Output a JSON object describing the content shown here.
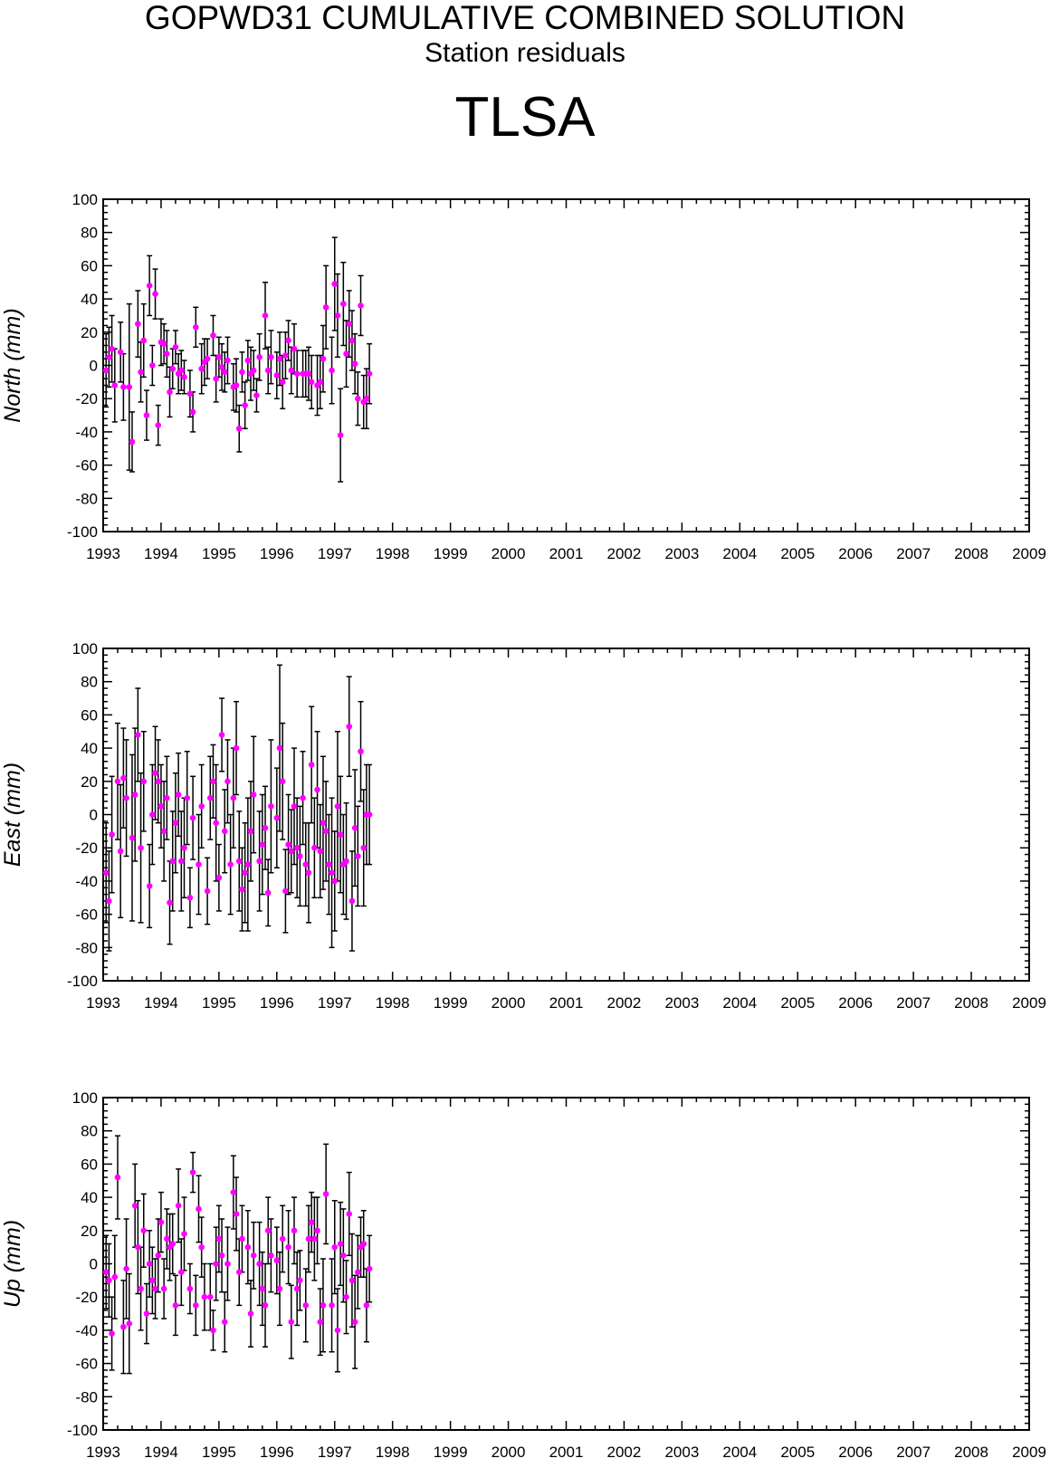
{
  "header": {
    "title": "GOPWD31 CUMULATIVE COMBINED SOLUTION",
    "subtitle": "Station residuals",
    "station": "TLSA"
  },
  "colors": {
    "marker": "#ff00ff",
    "errorbar": "#000000",
    "frame": "#000000"
  },
  "chart_data": [
    {
      "type": "scatter",
      "ylabel": "North (mm)",
      "xlim": [
        1993,
        2009
      ],
      "ylim": [
        -100,
        100
      ],
      "x_ticks": [
        "1993",
        "1994",
        "1995",
        "1996",
        "1997",
        "1998",
        "1999",
        "2000",
        "2001",
        "2002",
        "2003",
        "2004",
        "2005",
        "2006",
        "2007",
        "2008",
        "2009"
      ],
      "y_ticks": [
        "100",
        "80",
        "60",
        "40",
        "20",
        "0",
        "-20",
        "-40",
        "-60",
        "-80",
        "-100"
      ],
      "error_bars": true,
      "note_values": "approximate, read from plot",
      "x": [
        1993.05,
        1993.1,
        1993.15,
        1993.2,
        1993.3,
        1993.35,
        1993.45,
        1993.5,
        1993.6,
        1993.65,
        1993.7,
        1993.75,
        1993.8,
        1993.85,
        1993.9,
        1993.95,
        1994.0,
        1994.05,
        1994.1,
        1994.15,
        1994.2,
        1994.25,
        1994.3,
        1994.35,
        1994.4,
        1994.5,
        1994.55,
        1994.6,
        1994.7,
        1994.75,
        1994.8,
        1994.9,
        1994.95,
        1995.0,
        1995.05,
        1995.1,
        1995.15,
        1995.25,
        1995.3,
        1995.35,
        1995.4,
        1995.45,
        1995.5,
        1995.55,
        1995.6,
        1995.65,
        1995.7,
        1995.8,
        1995.85,
        1995.9,
        1996.0,
        1996.05,
        1996.1,
        1996.15,
        1996.2,
        1996.25,
        1996.3,
        1996.35,
        1996.45,
        1996.5,
        1996.55,
        1996.6,
        1996.7,
        1996.75,
        1996.8,
        1996.85,
        1996.95,
        1997.0,
        1997.05,
        1997.1,
        1997.15,
        1997.2,
        1997.25,
        1997.3,
        1997.35,
        1997.4,
        1997.45,
        1997.5,
        1997.55,
        1997.6
      ],
      "y": [
        -3,
        5,
        10,
        -12,
        8,
        -13,
        -13,
        -46,
        25,
        -4,
        15,
        -30,
        48,
        0,
        43,
        -36,
        14,
        13,
        7,
        -16,
        -2,
        11,
        -5,
        -3,
        -7,
        -17,
        -28,
        23,
        -2,
        2,
        4,
        18,
        -8,
        5,
        -1,
        -4,
        3,
        -13,
        -12,
        -38,
        -4,
        -24,
        3,
        -5,
        -3,
        -18,
        5,
        30,
        -3,
        5,
        -6,
        4,
        -10,
        6,
        15,
        -3,
        10,
        -5,
        -5,
        -5,
        -5,
        -10,
        -12,
        -10,
        4,
        35,
        -3,
        49,
        30,
        -42,
        37,
        7,
        25,
        15,
        1,
        -20,
        36,
        -22,
        -20,
        -5
      ],
      "err": [
        22,
        18,
        20,
        22,
        18,
        20,
        50,
        18,
        20,
        18,
        22,
        15,
        18,
        12,
        15,
        12,
        14,
        12,
        14,
        15,
        12,
        10,
        12,
        12,
        10,
        14,
        12,
        12,
        15,
        14,
        12,
        12,
        14,
        12,
        14,
        12,
        14,
        14,
        16,
        14,
        12,
        14,
        12,
        16,
        12,
        10,
        14,
        20,
        14,
        16,
        14,
        16,
        16,
        14,
        12,
        14,
        15,
        14,
        14,
        14,
        16,
        16,
        18,
        16,
        20,
        25,
        20,
        28,
        25,
        28,
        25,
        20,
        20,
        18,
        18,
        16,
        18,
        16,
        18,
        18
      ]
    },
    {
      "type": "scatter",
      "ylabel": "East (mm)",
      "xlim": [
        1993,
        2009
      ],
      "ylim": [
        -100,
        100
      ],
      "x_ticks": [
        "1993",
        "1994",
        "1995",
        "1996",
        "1997",
        "1998",
        "1999",
        "2000",
        "2001",
        "2002",
        "2003",
        "2004",
        "2005",
        "2006",
        "2007",
        "2008",
        "2009"
      ],
      "y_ticks": [
        "100",
        "80",
        "60",
        "40",
        "20",
        "0",
        "-20",
        "-40",
        "-60",
        "-80",
        "-100"
      ],
      "error_bars": true,
      "note_values": "approximate, read from plot",
      "x": [
        1993.05,
        1993.1,
        1993.15,
        1993.25,
        1993.3,
        1993.35,
        1993.4,
        1993.5,
        1993.55,
        1993.6,
        1993.65,
        1993.7,
        1993.8,
        1993.85,
        1993.9,
        1993.95,
        1994.0,
        1994.05,
        1994.1,
        1994.15,
        1994.2,
        1994.25,
        1994.3,
        1994.35,
        1994.4,
        1994.45,
        1994.5,
        1994.55,
        1994.65,
        1994.7,
        1994.8,
        1994.85,
        1994.9,
        1994.95,
        1995.0,
        1995.05,
        1995.1,
        1995.15,
        1995.2,
        1995.25,
        1995.3,
        1995.35,
        1995.4,
        1995.45,
        1995.5,
        1995.55,
        1995.6,
        1995.7,
        1995.75,
        1995.8,
        1995.85,
        1995.9,
        1996.0,
        1996.05,
        1996.1,
        1996.15,
        1996.2,
        1996.25,
        1996.3,
        1996.35,
        1996.4,
        1996.45,
        1996.5,
        1996.55,
        1996.6,
        1996.65,
        1996.7,
        1996.75,
        1996.8,
        1996.85,
        1996.9,
        1996.95,
        1997.0,
        1997.05,
        1997.1,
        1997.15,
        1997.2,
        1997.25,
        1997.3,
        1997.35,
        1997.4,
        1997.45,
        1997.5,
        1997.55,
        1997.6
      ],
      "y": [
        -35,
        -52,
        -12,
        20,
        -22,
        22,
        10,
        -14,
        12,
        48,
        -20,
        20,
        -43,
        0,
        25,
        20,
        5,
        -10,
        10,
        -53,
        -28,
        -5,
        12,
        -28,
        -20,
        10,
        -50,
        -2,
        -30,
        5,
        -46,
        10,
        20,
        -5,
        -38,
        48,
        -10,
        20,
        -30,
        10,
        40,
        -28,
        -45,
        -35,
        -30,
        -10,
        12,
        -28,
        -18,
        -8,
        -47,
        5,
        -2,
        40,
        20,
        -46,
        -18,
        -22,
        5,
        -20,
        -25,
        10,
        -30,
        -35,
        30,
        -20,
        15,
        -22,
        -5,
        -10,
        -30,
        -35,
        -40,
        5,
        -12,
        -30,
        -28,
        53,
        -52,
        -8,
        -25,
        38,
        -20,
        0,
        0
      ],
      "err": [
        30,
        30,
        35,
        35,
        40,
        30,
        35,
        50,
        40,
        28,
        45,
        30,
        25,
        30,
        28,
        25,
        25,
        30,
        25,
        25,
        30,
        30,
        25,
        30,
        30,
        28,
        18,
        25,
        30,
        25,
        20,
        25,
        22,
        35,
        20,
        22,
        25,
        25,
        30,
        30,
        28,
        30,
        25,
        30,
        40,
        30,
        35,
        30,
        30,
        25,
        20,
        40,
        30,
        50,
        35,
        25,
        30,
        25,
        35,
        30,
        30,
        28,
        25,
        30,
        35,
        30,
        35,
        28,
        40,
        30,
        30,
        45,
        30,
        45,
        35,
        30,
        35,
        30,
        30,
        35,
        30,
        30,
        35,
        30,
        30
      ]
    },
    {
      "type": "scatter",
      "ylabel": "Up (mm)",
      "xlim": [
        1993,
        2009
      ],
      "ylim": [
        -100,
        100
      ],
      "x_ticks": [
        "1993",
        "1994",
        "1995",
        "1996",
        "1997",
        "1998",
        "1999",
        "2000",
        "2001",
        "2002",
        "2003",
        "2004",
        "2005",
        "2006",
        "2007",
        "2008",
        "2009"
      ],
      "y_ticks": [
        "100",
        "80",
        "60",
        "40",
        "20",
        "0",
        "-20",
        "-40",
        "-60",
        "-80",
        "-100"
      ],
      "error_bars": true,
      "note_values": "approximate, read from plot",
      "x": [
        1993.05,
        1993.1,
        1993.15,
        1993.2,
        1993.25,
        1993.35,
        1993.4,
        1993.45,
        1993.55,
        1993.6,
        1993.65,
        1993.7,
        1993.75,
        1993.8,
        1993.85,
        1993.9,
        1993.95,
        1994.0,
        1994.05,
        1994.1,
        1994.15,
        1994.2,
        1994.25,
        1994.3,
        1994.35,
        1994.4,
        1994.5,
        1994.55,
        1994.6,
        1994.65,
        1994.7,
        1994.75,
        1994.85,
        1994.9,
        1994.95,
        1995.0,
        1995.05,
        1995.1,
        1995.15,
        1995.25,
        1995.3,
        1995.35,
        1995.4,
        1995.5,
        1995.55,
        1995.6,
        1995.7,
        1995.75,
        1995.8,
        1995.85,
        1995.9,
        1996.0,
        1996.05,
        1996.1,
        1996.2,
        1996.25,
        1996.3,
        1996.35,
        1996.4,
        1996.5,
        1996.55,
        1996.6,
        1996.65,
        1996.7,
        1996.75,
        1996.8,
        1996.85,
        1996.95,
        1997.0,
        1997.05,
        1997.1,
        1997.15,
        1997.2,
        1997.25,
        1997.3,
        1997.35,
        1997.4,
        1997.45,
        1997.5,
        1997.55,
        1997.6
      ],
      "y": [
        -5,
        -10,
        -42,
        -8,
        52,
        -38,
        -3,
        -36,
        35,
        10,
        -15,
        20,
        -30,
        0,
        -10,
        -15,
        5,
        25,
        -15,
        15,
        10,
        12,
        -25,
        35,
        -5,
        18,
        -15,
        55,
        -25,
        33,
        10,
        -20,
        -20,
        -40,
        0,
        15,
        5,
        -35,
        0,
        43,
        30,
        -5,
        15,
        10,
        -30,
        5,
        0,
        -15,
        -25,
        20,
        5,
        2,
        -15,
        15,
        10,
        -35,
        20,
        -15,
        -10,
        -25,
        15,
        25,
        15,
        20,
        -35,
        -25,
        42,
        -25,
        10,
        -40,
        12,
        5,
        -20,
        30,
        -10,
        -35,
        -5,
        10,
        12,
        -25,
        -3
      ],
      "err": [
        22,
        22,
        22,
        25,
        25,
        28,
        30,
        30,
        25,
        28,
        25,
        22,
        18,
        20,
        20,
        18,
        22,
        18,
        18,
        18,
        20,
        18,
        18,
        22,
        20,
        22,
        15,
        12,
        18,
        20,
        18,
        20,
        20,
        12,
        22,
        20,
        22,
        18,
        22,
        22,
        22,
        20,
        20,
        22,
        20,
        20,
        25,
        22,
        25,
        20,
        22,
        20,
        22,
        20,
        22,
        22,
        20,
        22,
        18,
        22,
        20,
        18,
        25,
        20,
        20,
        28,
        30,
        28,
        28,
        25,
        25,
        28,
        22,
        25,
        28,
        28,
        22,
        18,
        20,
        22,
        20
      ]
    }
  ]
}
